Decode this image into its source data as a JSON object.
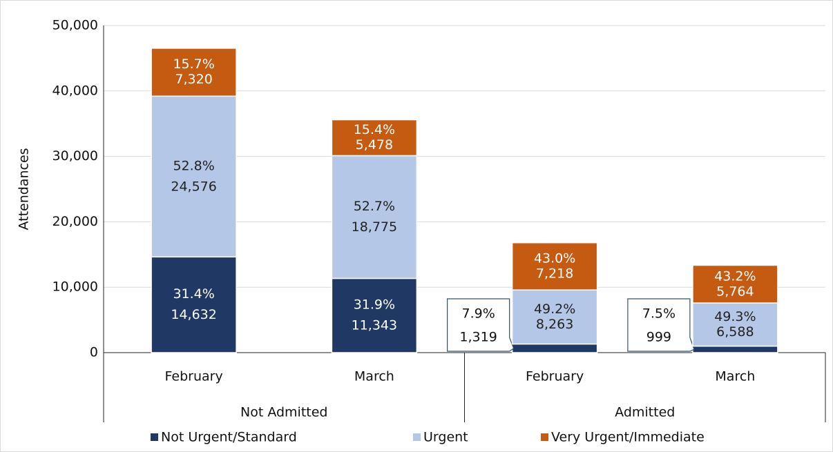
{
  "chart_data": {
    "type": "stacked-bar",
    "y_label": "Attendances",
    "groups": [
      {
        "name": "Not Admitted",
        "categories": [
          "February",
          "March"
        ]
      },
      {
        "name": "Admitted",
        "categories": [
          "February",
          "March"
        ]
      }
    ],
    "series": [
      {
        "name": "Not Urgent/Standard",
        "color": "#203864",
        "label_color": "#ffffff",
        "values": [
          14632,
          11343,
          1319,
          999
        ],
        "value_labels": [
          "14,632",
          "11,343",
          "1,319",
          "999"
        ],
        "shares": [
          31.4,
          31.9,
          7.9,
          7.5
        ],
        "share_labels": [
          "31.4%",
          "31.9%",
          "7.9%",
          "7.5%"
        ]
      },
      {
        "name": "Urgent",
        "color": "#b4c7e7",
        "label_color": "#222222",
        "values": [
          24576,
          18775,
          8263,
          6588
        ],
        "value_labels": [
          "24,576",
          "18,775",
          "8,263",
          "6,588"
        ],
        "shares": [
          52.8,
          52.7,
          49.2,
          49.3
        ],
        "share_labels": [
          "52.8%",
          "52.7%",
          "49.2%",
          "49.3%"
        ]
      },
      {
        "name": "Very Urgent/Immediate",
        "color": "#c55a11",
        "label_color": "#ffffff",
        "values": [
          7320,
          5478,
          7218,
          5764
        ],
        "value_labels": [
          "7,320",
          "5,478",
          "7,218",
          "5,764"
        ],
        "shares": [
          15.7,
          15.4,
          43.0,
          43.2
        ],
        "share_labels": [
          "15.7%",
          "15.4%",
          "43.0%",
          "43.2%"
        ]
      }
    ],
    "ylim": [
      0,
      50000
    ],
    "yticks": [
      0,
      {
        "value": 10000,
        "label": "10,000"
      },
      {
        "value": 20000,
        "label": "20,000"
      },
      {
        "value": 30000,
        "label": "30,000"
      },
      {
        "value": 40000,
        "label": "40,000"
      },
      {
        "value": 50000,
        "label": "50,000"
      }
    ],
    "grid": true,
    "legend": "bottom"
  }
}
